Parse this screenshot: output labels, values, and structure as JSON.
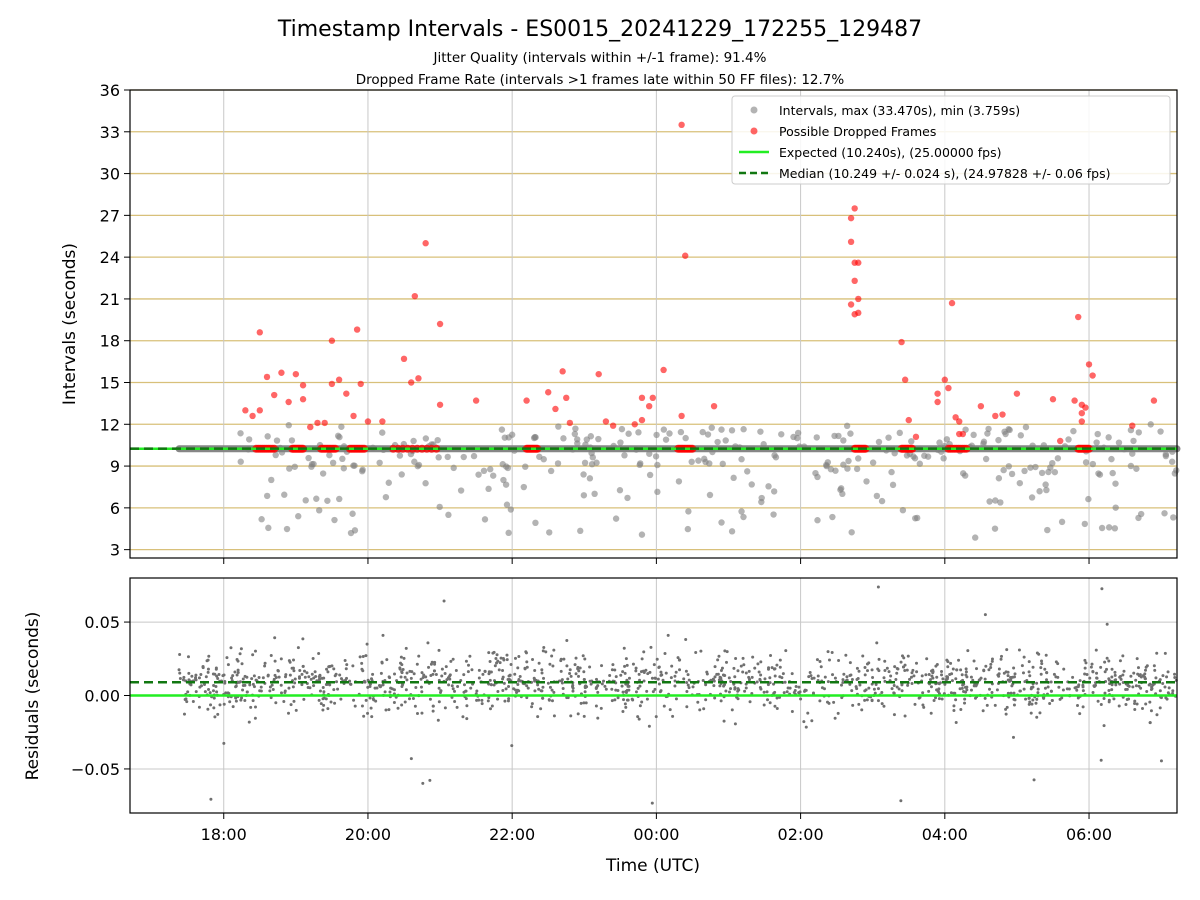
{
  "chart_data": {
    "type": "scatter",
    "title": "Timestamp Intervals - ES0015_20241229_172255_129487",
    "subtitle_lines": [
      "Jitter Quality (intervals within +/-1 frame): 91.4%",
      "Dropped Frame Rate (intervals >1 frames late within 50 FF files): 12.7%"
    ],
    "xlabel": "Time (UTC)",
    "x_ticks": [
      "18:00",
      "20:00",
      "22:00",
      "00:00",
      "02:00",
      "04:00",
      "06:00"
    ],
    "x_range_hours": [
      16.7,
      31.22
    ],
    "top": {
      "ylabel": "Intervals (seconds)",
      "ylim": [
        2.4,
        36.0
      ],
      "y_ticks": [
        3,
        6,
        9,
        12,
        15,
        18,
        21,
        24,
        27,
        30,
        33,
        36
      ],
      "y_tick_labels": [
        "3",
        "6",
        "9",
        "12",
        "15",
        "18",
        "21",
        "24",
        "27",
        "30",
        "33",
        "36"
      ],
      "expected": 10.24,
      "median": 10.249,
      "legend_position": "top-right",
      "legend": [
        {
          "label": "Intervals, max (33.470s), min (3.759s)",
          "kind": "marker",
          "color": "#808080"
        },
        {
          "label": "Possible Dropped Frames",
          "kind": "marker",
          "color": "#ff0000"
        },
        {
          "label": "Expected (10.240s), (25.00000 fps)",
          "kind": "line",
          "color": "#22ee22"
        },
        {
          "label": "Median (10.249 +/- 0.024 s), (24.97828 +/- 0.06 fps)",
          "kind": "dashed",
          "color": "#117711"
        }
      ],
      "series": [
        {
          "name": "Possible Dropped Frames",
          "color": "#ff0000",
          "points": [
            [
              18.3,
              13.0
            ],
            [
              18.4,
              12.6
            ],
            [
              18.5,
              18.6
            ],
            [
              18.6,
              15.4
            ],
            [
              18.5,
              13.0
            ],
            [
              18.8,
              15.7
            ],
            [
              18.7,
              14.1
            ],
            [
              18.9,
              13.6
            ],
            [
              19.0,
              15.6
            ],
            [
              19.1,
              14.8
            ],
            [
              19.1,
              13.8
            ],
            [
              19.2,
              11.8
            ],
            [
              19.3,
              12.1
            ],
            [
              19.4,
              12.1
            ],
            [
              19.5,
              14.9
            ],
            [
              19.5,
              18.0
            ],
            [
              19.6,
              15.2
            ],
            [
              19.7,
              14.2
            ],
            [
              19.8,
              12.6
            ],
            [
              19.85,
              18.8
            ],
            [
              19.9,
              14.9
            ],
            [
              20.0,
              12.2
            ],
            [
              20.2,
              12.2
            ],
            [
              20.5,
              16.7
            ],
            [
              20.6,
              15.0
            ],
            [
              20.65,
              21.2
            ],
            [
              20.7,
              15.3
            ],
            [
              20.8,
              25.0
            ],
            [
              21.0,
              19.2
            ],
            [
              21.0,
              13.4
            ],
            [
              21.5,
              13.7
            ],
            [
              22.2,
              13.7
            ],
            [
              22.5,
              14.3
            ],
            [
              22.6,
              13.1
            ],
            [
              22.7,
              15.8
            ],
            [
              22.75,
              13.9
            ],
            [
              22.8,
              12.1
            ],
            [
              23.2,
              15.6
            ],
            [
              23.3,
              12.2
            ],
            [
              23.4,
              11.9
            ],
            [
              23.7,
              12.0
            ],
            [
              23.8,
              13.9
            ],
            [
              23.8,
              12.3
            ],
            [
              23.9,
              13.3
            ],
            [
              23.95,
              13.9
            ],
            [
              24.1,
              15.9
            ],
            [
              24.35,
              33.5
            ],
            [
              24.4,
              24.1
            ],
            [
              24.35,
              12.6
            ],
            [
              24.8,
              13.3
            ],
            [
              26.7,
              26.8
            ],
            [
              26.75,
              27.5
            ],
            [
              26.7,
              25.1
            ],
            [
              26.75,
              23.6
            ],
            [
              26.8,
              23.6
            ],
            [
              26.75,
              22.3
            ],
            [
              26.8,
              21.0
            ],
            [
              26.7,
              20.6
            ],
            [
              26.8,
              20.0
            ],
            [
              26.75,
              19.9
            ],
            [
              27.4,
              17.9
            ],
            [
              27.45,
              15.2
            ],
            [
              27.5,
              12.3
            ],
            [
              27.6,
              11.1
            ],
            [
              27.9,
              14.2
            ],
            [
              27.9,
              13.6
            ],
            [
              28.0,
              15.2
            ],
            [
              28.05,
              14.6
            ],
            [
              28.1,
              20.7
            ],
            [
              28.15,
              12.5
            ],
            [
              28.2,
              12.2
            ],
            [
              28.2,
              11.3
            ],
            [
              28.25,
              11.3
            ],
            [
              28.5,
              13.3
            ],
            [
              28.7,
              12.6
            ],
            [
              28.8,
              12.7
            ],
            [
              29.0,
              14.2
            ],
            [
              29.5,
              13.8
            ],
            [
              29.6,
              10.8
            ],
            [
              29.8,
              13.7
            ],
            [
              29.85,
              19.7
            ],
            [
              29.9,
              13.4
            ],
            [
              29.9,
              12.8
            ],
            [
              29.9,
              12.2
            ],
            [
              29.95,
              13.2
            ],
            [
              30.0,
              16.3
            ],
            [
              30.05,
              15.5
            ],
            [
              30.6,
              11.9
            ],
            [
              30.9,
              13.7
            ]
          ]
        }
      ]
    },
    "bottom": {
      "ylabel": "Residuals (seconds)",
      "ylim": [
        -0.08,
        0.08
      ],
      "y_ticks": [
        -0.05,
        0.0,
        0.05
      ],
      "y_tick_labels": [
        "−0.05",
        "0.00",
        "0.05"
      ],
      "expected": 0.0,
      "median": 0.009
    },
    "data_start_hour": 17.38,
    "data_end_hour": 31.22
  }
}
